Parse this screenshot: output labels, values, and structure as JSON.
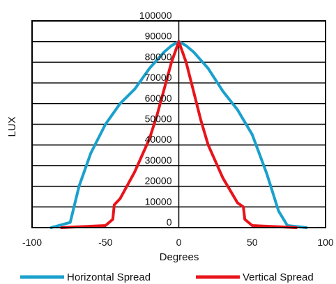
{
  "chart_data": {
    "type": "line",
    "xlabel": "Degrees",
    "ylabel": "LUX",
    "xlim": [
      -100,
      100
    ],
    "ylim": [
      0,
      100000
    ],
    "x_ticks": [
      "-100",
      "-50",
      "0",
      "50",
      "100"
    ],
    "y_ticks": [
      "0",
      "10000",
      "20000",
      "30000",
      "40000",
      "50000",
      "60000",
      "70000",
      "80000",
      "90000",
      "100000"
    ],
    "grid": "horizontal",
    "legend_position": "bottom",
    "series": [
      {
        "name": "Horizontal Spread",
        "color": "#1aa0cc",
        "x": [
          -87,
          -74,
          -68,
          -60,
          -50,
          -40,
          -30,
          -20,
          -10,
          -5,
          0,
          5,
          10,
          20,
          30,
          40,
          50,
          60,
          68,
          74,
          87
        ],
        "y": [
          0,
          2500,
          20000,
          36000,
          50000,
          60000,
          67000,
          77000,
          85000,
          88000,
          90000,
          88000,
          85000,
          77000,
          66000,
          57000,
          45000,
          26000,
          8000,
          1000,
          0
        ]
      },
      {
        "name": "Vertical Spread",
        "color": "#e8141a",
        "x": [
          -80,
          -50,
          -45,
          -44,
          -40,
          -30,
          -20,
          -15,
          -10,
          -5,
          0,
          5,
          10,
          15,
          20,
          30,
          40,
          44,
          45,
          50,
          80
        ],
        "y": [
          0,
          1000,
          4000,
          11000,
          14000,
          27000,
          43000,
          54000,
          67000,
          80000,
          90000,
          80000,
          66000,
          52000,
          40000,
          24000,
          12000,
          10000,
          4000,
          1000,
          0
        ]
      }
    ]
  }
}
